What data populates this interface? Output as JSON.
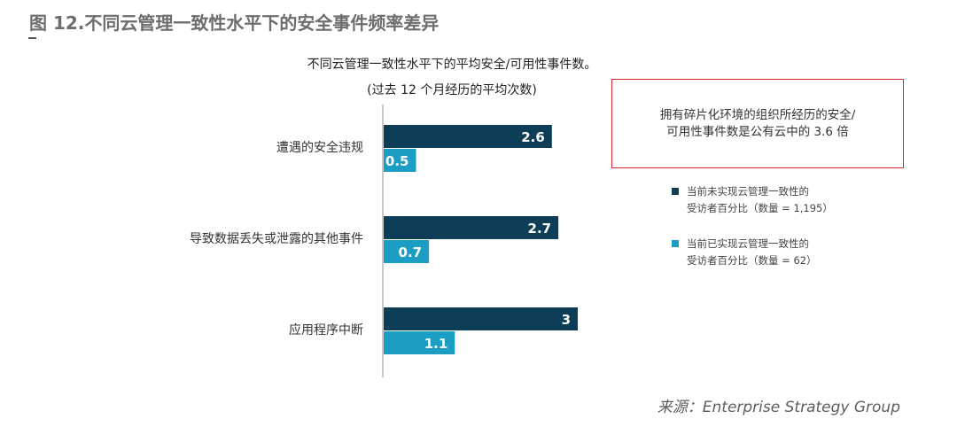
{
  "figure_title": "图 12.不同云管理一致性水平下的安全事件频率差异",
  "chart_title_line1": "不同云管理一致性水平下的平均安全/可用性事件数。",
  "chart_title_line2": "(过去 12 个月经历的平均次数)",
  "callout_text_line1": "拥有碎片化环境的组织所经历的安全/",
  "callout_text_line2": "可用性事件数是公有云中的 3.6 倍",
  "source": "来源：Enterprise Strategy Group",
  "colors": {
    "series_dark": "#0e3e57",
    "series_light": "#1b9dc4",
    "callout_border": "#d9272e",
    "axis": "#c8c8c8"
  },
  "chart_data": {
    "type": "bar",
    "orientation": "horizontal",
    "categories": [
      "遭遇的安全违规",
      "导致数据丢失或泄露的其他事件",
      "应用程序中断"
    ],
    "series": [
      {
        "name_line1": "当前未实现云管理一致性的",
        "name_line2": "受访者百分比（数量 = 1,195）",
        "values": [
          2.6,
          2.7,
          3
        ]
      },
      {
        "name_line1": "当前已实现云管理一致性的",
        "name_line2": "受访者百分比（数量 = 62）",
        "values": [
          0.5,
          0.7,
          1.1
        ]
      }
    ],
    "value_labels": [
      [
        "2.6",
        "2.7",
        "3"
      ],
      [
        "0.5",
        "0.7",
        "1.1"
      ]
    ],
    "legend_position": "right",
    "grid": false
  }
}
